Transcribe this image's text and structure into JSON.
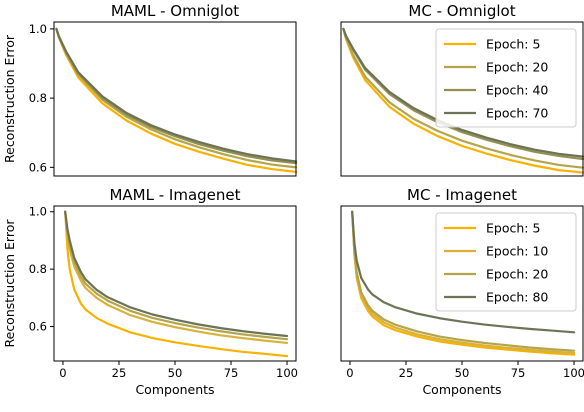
{
  "colors": {
    "epoch_5": "#f6b200",
    "epoch_10": "#d8b13a",
    "epoch_20": "#b5a44a",
    "epoch_40": "#948f50",
    "epoch_70": "#6c7458",
    "epoch_80": "#6c7458"
  },
  "chart_data": [
    {
      "type": "line",
      "title": "MAML - Omniglot",
      "xlabel": "",
      "ylabel": "Reconstruction Error",
      "xlim": [
        0,
        100
      ],
      "ylim": [
        0.575,
        1.02
      ],
      "xticks": [],
      "yticks": [
        0.6,
        0.8,
        1.0
      ],
      "ytick_labels": [
        "0.6",
        "0.8",
        "1.0"
      ],
      "legend": null,
      "series": [
        {
          "name": "Epoch: 5",
          "color_key": "epoch_5",
          "x": [
            1,
            2,
            5,
            10,
            20,
            30,
            40,
            50,
            60,
            70,
            80,
            90,
            100
          ],
          "y": [
            1.0,
            0.975,
            0.925,
            0.86,
            0.785,
            0.735,
            0.698,
            0.668,
            0.645,
            0.625,
            0.607,
            0.595,
            0.587
          ]
        },
        {
          "name": "Epoch: 20",
          "color_key": "epoch_20",
          "x": [
            1,
            2,
            5,
            10,
            20,
            30,
            40,
            50,
            60,
            70,
            80,
            90,
            100
          ],
          "y": [
            1.0,
            0.977,
            0.93,
            0.868,
            0.795,
            0.746,
            0.71,
            0.681,
            0.658,
            0.638,
            0.621,
            0.608,
            0.6
          ]
        },
        {
          "name": "Epoch: 40",
          "color_key": "epoch_40",
          "x": [
            1,
            2,
            5,
            10,
            20,
            30,
            40,
            50,
            60,
            70,
            80,
            90,
            100
          ],
          "y": [
            1.0,
            0.978,
            0.932,
            0.872,
            0.8,
            0.752,
            0.717,
            0.69,
            0.667,
            0.648,
            0.632,
            0.62,
            0.612
          ]
        },
        {
          "name": "Epoch: 70",
          "color_key": "epoch_70",
          "x": [
            1,
            2,
            5,
            10,
            20,
            30,
            40,
            50,
            60,
            70,
            80,
            90,
            100
          ],
          "y": [
            1.0,
            0.979,
            0.935,
            0.875,
            0.805,
            0.757,
            0.722,
            0.695,
            0.673,
            0.654,
            0.638,
            0.626,
            0.617
          ]
        }
      ]
    },
    {
      "type": "line",
      "title": "MC - Omniglot",
      "xlabel": "",
      "ylabel": "",
      "xlim": [
        0,
        100
      ],
      "ylim": [
        0.575,
        1.02
      ],
      "xticks": [],
      "yticks": [],
      "legend": {
        "placement": "top-right",
        "entries": [
          "Epoch: 5",
          "Epoch: 20",
          "Epoch: 40",
          "Epoch: 70"
        ]
      },
      "series": [
        {
          "name": "Epoch: 5",
          "color_key": "epoch_5",
          "x": [
            1,
            2,
            5,
            10,
            20,
            30,
            40,
            50,
            60,
            70,
            80,
            90,
            100
          ],
          "y": [
            1.0,
            0.972,
            0.918,
            0.852,
            0.775,
            0.726,
            0.69,
            0.662,
            0.64,
            0.621,
            0.605,
            0.592,
            0.585
          ]
        },
        {
          "name": "Epoch: 20",
          "color_key": "epoch_20",
          "x": [
            1,
            2,
            5,
            10,
            20,
            30,
            40,
            50,
            60,
            70,
            80,
            90,
            100
          ],
          "y": [
            1.0,
            0.975,
            0.925,
            0.862,
            0.788,
            0.74,
            0.705,
            0.677,
            0.655,
            0.636,
            0.62,
            0.607,
            0.599
          ]
        },
        {
          "name": "Epoch: 40",
          "color_key": "epoch_40",
          "x": [
            1,
            2,
            5,
            10,
            20,
            30,
            40,
            50,
            60,
            70,
            80,
            90,
            100
          ],
          "y": [
            1.0,
            0.98,
            0.94,
            0.882,
            0.812,
            0.765,
            0.73,
            0.702,
            0.68,
            0.661,
            0.645,
            0.633,
            0.624
          ]
        },
        {
          "name": "Epoch: 70",
          "color_key": "epoch_70",
          "x": [
            1,
            2,
            5,
            10,
            20,
            30,
            40,
            50,
            60,
            70,
            80,
            90,
            100
          ],
          "y": [
            1.0,
            0.981,
            0.943,
            0.887,
            0.818,
            0.771,
            0.736,
            0.708,
            0.686,
            0.667,
            0.651,
            0.639,
            0.631
          ]
        }
      ]
    },
    {
      "type": "line",
      "title": "MAML - Imagenet",
      "xlabel": "Components",
      "ylabel": "Reconstruction Error",
      "xlim": [
        -4,
        104
      ],
      "ylim": [
        0.48,
        1.02
      ],
      "xticks": [
        0,
        25,
        50,
        75,
        100
      ],
      "xtick_labels": [
        "0",
        "25",
        "50",
        "75",
        "100"
      ],
      "yticks": [
        0.6,
        0.8,
        1.0
      ],
      "ytick_labels": [
        "0.6",
        "0.8",
        "1.0"
      ],
      "legend": null,
      "series": [
        {
          "name": "Epoch: 5",
          "color_key": "epoch_5",
          "x": [
            1,
            2,
            3,
            5,
            8,
            10,
            15,
            20,
            30,
            40,
            50,
            60,
            70,
            80,
            90,
            100
          ],
          "y": [
            1.0,
            0.87,
            0.8,
            0.73,
            0.68,
            0.66,
            0.63,
            0.61,
            0.58,
            0.56,
            0.545,
            0.533,
            0.522,
            0.512,
            0.505,
            0.497
          ]
        },
        {
          "name": "Epoch: 10",
          "color_key": "epoch_10",
          "x": [
            1,
            2,
            3,
            5,
            8,
            10,
            15,
            20,
            30,
            40,
            50,
            60,
            70,
            80,
            90,
            100
          ],
          "y": [
            1.0,
            0.92,
            0.87,
            0.81,
            0.76,
            0.735,
            0.7,
            0.675,
            0.64,
            0.616,
            0.598,
            0.583,
            0.57,
            0.56,
            0.551,
            0.543
          ]
        },
        {
          "name": "Epoch: 20",
          "color_key": "epoch_20",
          "x": [
            1,
            2,
            3,
            5,
            8,
            10,
            15,
            20,
            30,
            40,
            50,
            60,
            70,
            80,
            90,
            100
          ],
          "y": [
            1.0,
            0.93,
            0.885,
            0.825,
            0.775,
            0.75,
            0.715,
            0.69,
            0.655,
            0.63,
            0.612,
            0.597,
            0.584,
            0.573,
            0.564,
            0.556
          ]
        },
        {
          "name": "Epoch: 80",
          "color_key": "epoch_80",
          "x": [
            1,
            2,
            3,
            5,
            8,
            10,
            15,
            20,
            30,
            40,
            50,
            60,
            70,
            80,
            90,
            100
          ],
          "y": [
            1.0,
            0.94,
            0.9,
            0.84,
            0.79,
            0.765,
            0.728,
            0.702,
            0.667,
            0.642,
            0.624,
            0.608,
            0.595,
            0.584,
            0.575,
            0.567
          ]
        }
      ]
    },
    {
      "type": "line",
      "title": "MC - Imagenet",
      "xlabel": "Components",
      "ylabel": "",
      "xlim": [
        -4,
        104
      ],
      "ylim": [
        0.48,
        1.02
      ],
      "xticks": [
        0,
        25,
        50,
        75,
        100
      ],
      "xtick_labels": [
        "0",
        "25",
        "50",
        "75",
        "100"
      ],
      "yticks": [],
      "legend": {
        "placement": "top-right",
        "entries": [
          "Epoch: 5",
          "Epoch: 10",
          "Epoch: 20",
          "Epoch: 80"
        ]
      },
      "series": [
        {
          "name": "Epoch: 5",
          "color_key": "epoch_5",
          "x": [
            1,
            2,
            3,
            5,
            8,
            10,
            15,
            20,
            30,
            40,
            50,
            60,
            70,
            80,
            90,
            100
          ],
          "y": [
            1.0,
            0.85,
            0.77,
            0.7,
            0.655,
            0.635,
            0.605,
            0.588,
            0.565,
            0.548,
            0.537,
            0.527,
            0.52,
            0.513,
            0.507,
            0.502
          ]
        },
        {
          "name": "Epoch: 10",
          "color_key": "epoch_10",
          "x": [
            1,
            2,
            3,
            5,
            8,
            10,
            15,
            20,
            30,
            40,
            50,
            60,
            70,
            80,
            90,
            100
          ],
          "y": [
            1.0,
            0.855,
            0.78,
            0.71,
            0.665,
            0.645,
            0.615,
            0.597,
            0.573,
            0.556,
            0.544,
            0.534,
            0.526,
            0.519,
            0.513,
            0.508
          ]
        },
        {
          "name": "Epoch: 20",
          "color_key": "epoch_20",
          "x": [
            1,
            2,
            3,
            5,
            8,
            10,
            15,
            20,
            30,
            40,
            50,
            60,
            70,
            80,
            90,
            100
          ],
          "y": [
            1.0,
            0.86,
            0.79,
            0.72,
            0.675,
            0.655,
            0.625,
            0.607,
            0.583,
            0.565,
            0.553,
            0.543,
            0.535,
            0.527,
            0.521,
            0.516
          ]
        },
        {
          "name": "Epoch: 80",
          "color_key": "epoch_80",
          "x": [
            1,
            2,
            3,
            5,
            8,
            10,
            15,
            20,
            30,
            40,
            50,
            60,
            70,
            80,
            90,
            100
          ],
          "y": [
            1.0,
            0.89,
            0.83,
            0.77,
            0.73,
            0.712,
            0.685,
            0.668,
            0.645,
            0.629,
            0.617,
            0.607,
            0.599,
            0.592,
            0.586,
            0.58
          ]
        }
      ]
    }
  ]
}
